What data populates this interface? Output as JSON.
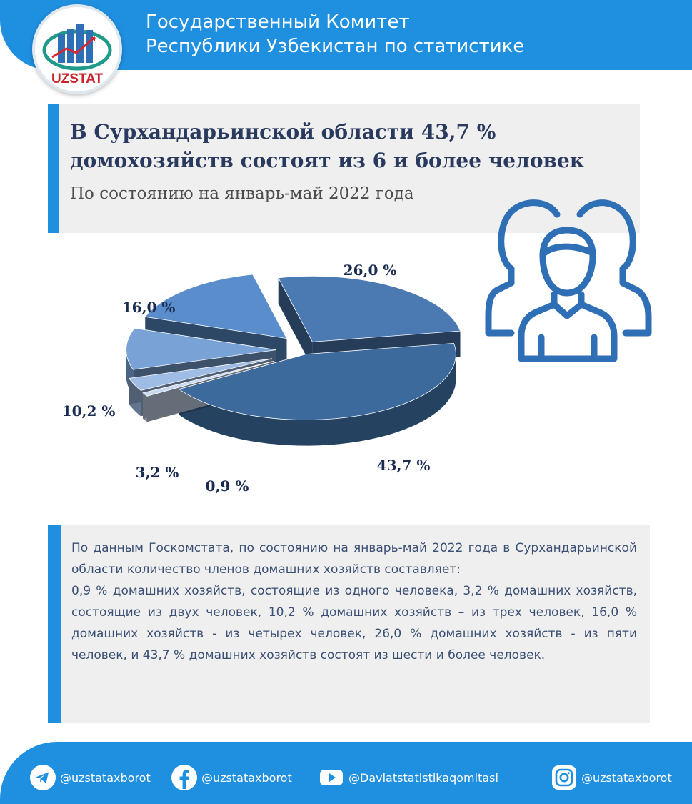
{
  "header": {
    "title_line1": "Государственный Комитет",
    "title_line2": "Республики Узбекистан по статистике",
    "logo_text": "UZSTAT"
  },
  "headline": {
    "title_line1": "В Сурхандарьинской области 43,7 %",
    "title_line2": "домохозяйств состоят из 6 и более человек",
    "subtitle": "По состоянию на январь-май 2022 года"
  },
  "chart_data": {
    "type": "pie",
    "style": "3d-exploded",
    "slices": [
      {
        "label": "26,0 %",
        "value": 26.0,
        "color": "#4b7ab3"
      },
      {
        "label": "43,7 %",
        "value": 43.7,
        "color": "#3d6a9c"
      },
      {
        "label": "0,9 %",
        "value": 0.9,
        "color": "#c9d9ef"
      },
      {
        "label": "3,2 %",
        "value": 3.2,
        "color": "#9fbde4"
      },
      {
        "label": "10,2 %",
        "value": 10.2,
        "color": "#79a2d6"
      },
      {
        "label": "16,0 %",
        "value": 16.0,
        "color": "#5a8dcb"
      }
    ]
  },
  "description": {
    "paragraph1": "По данным Госкомстата, по состоянию на январь-май 2022 года в Сурхандарьинской области количество членов домашних хозяйств составляет:",
    "paragraph2": "0,9 % домашних хозяйств, состоящие из одного человека, 3,2 % домашних хозяйств, состоящие из двух человек, 10,2 % домашних хозяйств – из трех человек, 16,0 % домашних хозяйств - из четырех человек, 26,0 % домашних хозяйств - из пяти человек, и 43,7 % домашних хозяйств состоят из шести и более человек."
  },
  "footer": {
    "socials": [
      {
        "icon": "telegram-icon",
        "handle": "@uzstataxborot"
      },
      {
        "icon": "facebook-icon",
        "handle": "@uzstataxborot"
      },
      {
        "icon": "youtube-icon",
        "handle": "@Davlatstatistikaqomitasi"
      },
      {
        "icon": "instagram-icon",
        "handle": "@uzstataxborot"
      }
    ]
  },
  "colors": {
    "brand_blue": "#1f8fe0",
    "title_navy": "#2a3a5e",
    "panel_gray": "#efefef"
  }
}
